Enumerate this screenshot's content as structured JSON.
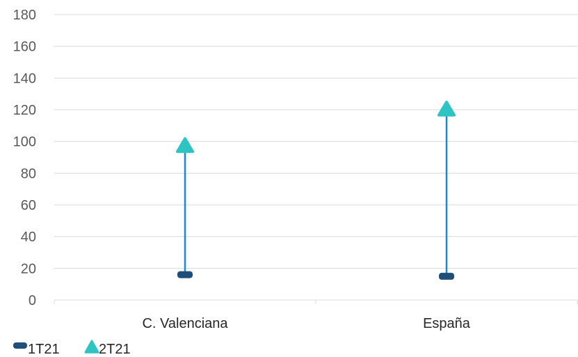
{
  "chart_data": {
    "type": "scatter",
    "categories": [
      "C. Valenciana",
      "España"
    ],
    "series": [
      {
        "name": "1T21",
        "values": [
          16,
          15
        ],
        "color": "#1F4E79",
        "marker": "dash"
      },
      {
        "name": "2T21",
        "values": [
          97,
          120
        ],
        "color": "#2EC4C4",
        "marker": "triangle"
      }
    ],
    "connector_color": "#1E88D8",
    "ylim": [
      0,
      180
    ],
    "yticks": [
      "0",
      "20",
      "40",
      "60",
      "80",
      "100",
      "120",
      "140",
      "160",
      "180"
    ],
    "grid": true,
    "legend_position": "bottom-left",
    "title": "",
    "xlabel": "",
    "ylabel": ""
  }
}
